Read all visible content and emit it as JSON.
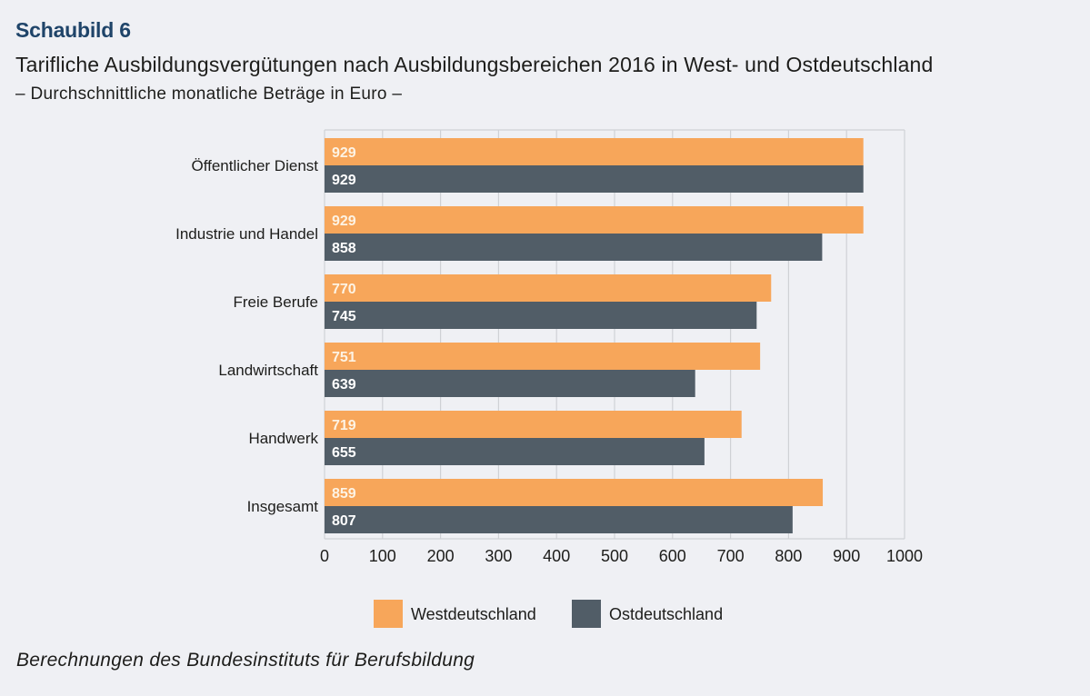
{
  "figure_label": "Schaubild 6",
  "title": "Tarifliche Ausbildungsvergütungen nach Ausbildungsbereichen 2016 in West- und Ostdeutschland",
  "subtitle": "– Durchschnittliche monatliche Beträge in Euro –",
  "source_note": "Berechnungen des Bundesinstituts für Berufsbildung",
  "chart_data": {
    "type": "bar",
    "orientation": "horizontal",
    "title": "Tarifliche Ausbildungsvergütungen nach Ausbildungsbereichen 2016 in West- und Ostdeutschland",
    "subtitle": "Durchschnittliche monatliche Beträge in Euro",
    "categories": [
      "Öffentlicher Dienst",
      "Industrie und Handel",
      "Freie Berufe",
      "Landwirtschaft",
      "Handwerk",
      "Insgesamt"
    ],
    "series": [
      {
        "name": "Westdeutschland",
        "color": "#f7a65a",
        "label_color": "#fdf3e4",
        "values": [
          929,
          929,
          770,
          751,
          719,
          859
        ]
      },
      {
        "name": "Ostdeutschland",
        "color": "#515d67",
        "label_color": "#ffffff",
        "values": [
          929,
          858,
          745,
          639,
          655,
          807
        ]
      }
    ],
    "xlabel": "",
    "ylabel": "",
    "xlim": [
      0,
      1000
    ],
    "xticks": [
      0,
      100,
      200,
      300,
      400,
      500,
      600,
      700,
      800,
      900,
      1000
    ],
    "grid": "vertical",
    "grid_color": "#cfd1d5",
    "data_labels": "inside-start",
    "legend": {
      "position": "bottom-center",
      "entries": [
        "Westdeutschland",
        "Ostdeutschland"
      ]
    }
  }
}
